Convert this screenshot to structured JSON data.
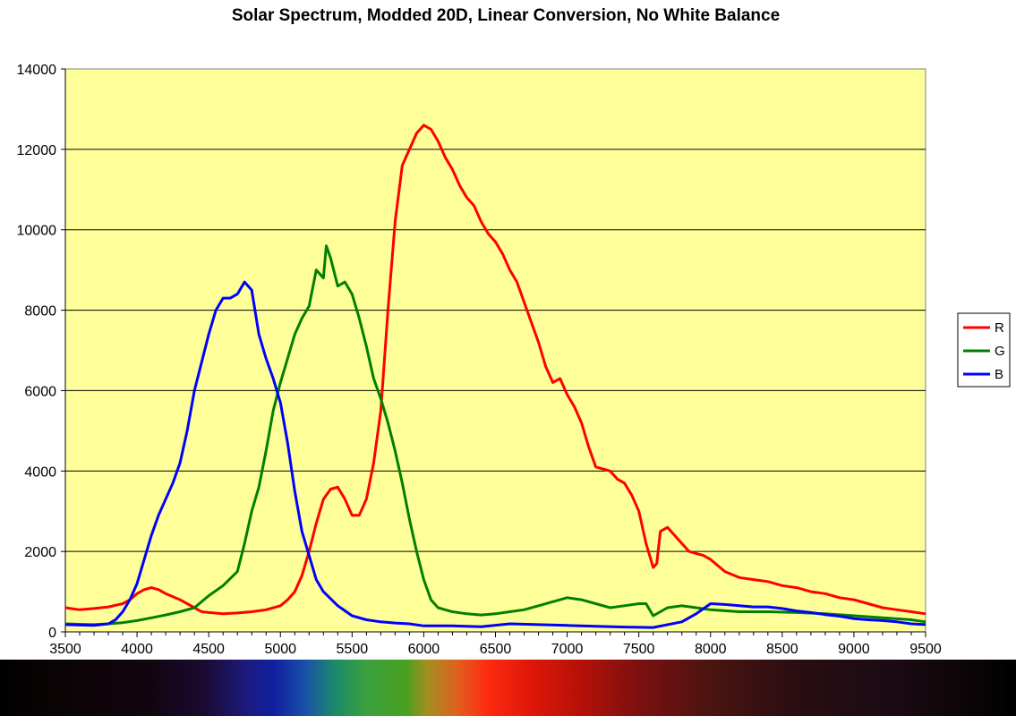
{
  "chart_data": {
    "type": "line",
    "title": "Solar Spectrum, Modded 20D, Linear Conversion, No White Balance",
    "xlabel": "",
    "ylabel": "",
    "xlim": [
      3500,
      9500
    ],
    "ylim": [
      0,
      14000
    ],
    "x_ticks": [
      "3500",
      "4000",
      "4500",
      "5000",
      "5500",
      "6000",
      "6500",
      "7000",
      "7500",
      "8000",
      "8500",
      "9000",
      "9500"
    ],
    "y_ticks": [
      "0",
      "2000",
      "4000",
      "6000",
      "8000",
      "10000",
      "12000",
      "14000"
    ],
    "grid": "horizontal",
    "legend_position": "right",
    "plot_background": "#ffff99",
    "series": [
      {
        "name": "R",
        "color": "#ff0000",
        "x": [
          3500,
          3600,
          3700,
          3800,
          3900,
          3950,
          4000,
          4050,
          4100,
          4150,
          4200,
          4300,
          4400,
          4450,
          4500,
          4600,
          4700,
          4800,
          4900,
          5000,
          5050,
          5100,
          5150,
          5200,
          5250,
          5300,
          5350,
          5400,
          5450,
          5500,
          5550,
          5600,
          5650,
          5700,
          5750,
          5800,
          5850,
          5900,
          5950,
          6000,
          6050,
          6100,
          6150,
          6200,
          6250,
          6300,
          6350,
          6400,
          6450,
          6500,
          6550,
          6600,
          6650,
          6700,
          6750,
          6800,
          6850,
          6900,
          6950,
          7000,
          7050,
          7100,
          7150,
          7200,
          7250,
          7300,
          7350,
          7400,
          7450,
          7500,
          7550,
          7600,
          7625,
          7650,
          7700,
          7750,
          7800,
          7850,
          7900,
          7950,
          8000,
          8100,
          8200,
          8300,
          8400,
          8500,
          8600,
          8700,
          8800,
          8900,
          9000,
          9100,
          9200,
          9300,
          9400,
          9500
        ],
        "values": [
          600,
          550,
          580,
          620,
          700,
          800,
          950,
          1050,
          1100,
          1050,
          950,
          800,
          600,
          500,
          480,
          450,
          470,
          500,
          550,
          650,
          800,
          1000,
          1400,
          2000,
          2700,
          3300,
          3550,
          3600,
          3300,
          2900,
          2900,
          3300,
          4200,
          5500,
          8000,
          10200,
          11600,
          12000,
          12400,
          12600,
          12500,
          12200,
          11800,
          11500,
          11100,
          10800,
          10600,
          10200,
          9900,
          9700,
          9400,
          9000,
          8700,
          8200,
          7700,
          7200,
          6600,
          6200,
          6300,
          5900,
          5600,
          5200,
          4600,
          4100,
          4050,
          4000,
          3800,
          3700,
          3400,
          3000,
          2200,
          1600,
          1700,
          2500,
          2600,
          2400,
          2200,
          2000,
          1950,
          1900,
          1800,
          1500,
          1350,
          1300,
          1250,
          1150,
          1100,
          1000,
          950,
          850,
          800,
          700,
          600,
          550,
          500,
          450
        ]
      },
      {
        "name": "G",
        "color": "#008000",
        "x": [
          3500,
          3600,
          3700,
          3800,
          3900,
          4000,
          4100,
          4200,
          4300,
          4400,
          4500,
          4600,
          4700,
          4750,
          4800,
          4850,
          4900,
          4950,
          5000,
          5050,
          5100,
          5150,
          5200,
          5250,
          5300,
          5320,
          5350,
          5400,
          5450,
          5500,
          5550,
          5600,
          5650,
          5700,
          5750,
          5800,
          5850,
          5900,
          5950,
          6000,
          6050,
          6100,
          6150,
          6200,
          6300,
          6400,
          6500,
          6600,
          6700,
          6800,
          6900,
          7000,
          7100,
          7200,
          7300,
          7400,
          7500,
          7550,
          7600,
          7650,
          7700,
          7800,
          7900,
          8000,
          8200,
          8400,
          8600,
          8800,
          9000,
          9200,
          9400,
          9500
        ],
        "values": [
          200,
          190,
          180,
          200,
          230,
          280,
          350,
          420,
          500,
          600,
          900,
          1150,
          1500,
          2200,
          3000,
          3600,
          4500,
          5500,
          6200,
          6800,
          7400,
          7800,
          8100,
          9000,
          8800,
          9600,
          9300,
          8600,
          8700,
          8400,
          7800,
          7100,
          6300,
          5800,
          5200,
          4500,
          3700,
          2800,
          2000,
          1300,
          800,
          600,
          550,
          500,
          450,
          420,
          450,
          500,
          550,
          650,
          750,
          850,
          800,
          700,
          600,
          650,
          700,
          700,
          400,
          500,
          600,
          650,
          600,
          550,
          500,
          500,
          480,
          450,
          400,
          350,
          300,
          250
        ]
      },
      {
        "name": "B",
        "color": "#0000ff",
        "x": [
          3500,
          3600,
          3700,
          3800,
          3850,
          3900,
          3950,
          4000,
          4050,
          4100,
          4150,
          4200,
          4250,
          4300,
          4350,
          4400,
          4450,
          4500,
          4550,
          4600,
          4650,
          4700,
          4750,
          4800,
          4850,
          4900,
          4950,
          5000,
          5050,
          5100,
          5150,
          5200,
          5250,
          5300,
          5400,
          5500,
          5600,
          5700,
          5800,
          5900,
          6000,
          6200,
          6400,
          6600,
          6800,
          7000,
          7200,
          7400,
          7600,
          7800,
          7900,
          8000,
          8100,
          8200,
          8300,
          8400,
          8500,
          8600,
          8700,
          8800,
          8900,
          9000,
          9100,
          9200,
          9300,
          9400,
          9500
        ],
        "values": [
          180,
          170,
          160,
          200,
          300,
          500,
          800,
          1200,
          1800,
          2400,
          2900,
          3300,
          3700,
          4200,
          5000,
          6000,
          6700,
          7400,
          8000,
          8300,
          8300,
          8400,
          8700,
          8500,
          7400,
          6800,
          6300,
          5700,
          4700,
          3500,
          2500,
          1900,
          1300,
          1000,
          650,
          400,
          300,
          250,
          220,
          200,
          150,
          150,
          130,
          200,
          180,
          160,
          140,
          120,
          110,
          250,
          450,
          700,
          680,
          650,
          620,
          620,
          580,
          520,
          480,
          430,
          390,
          330,
          300,
          280,
          250,
          200,
          180
        ]
      }
    ]
  },
  "legend_items": [
    {
      "label": "R",
      "color": "#ff0000"
    },
    {
      "label": "G",
      "color": "#008000"
    },
    {
      "label": "B",
      "color": "#0000ff"
    }
  ]
}
